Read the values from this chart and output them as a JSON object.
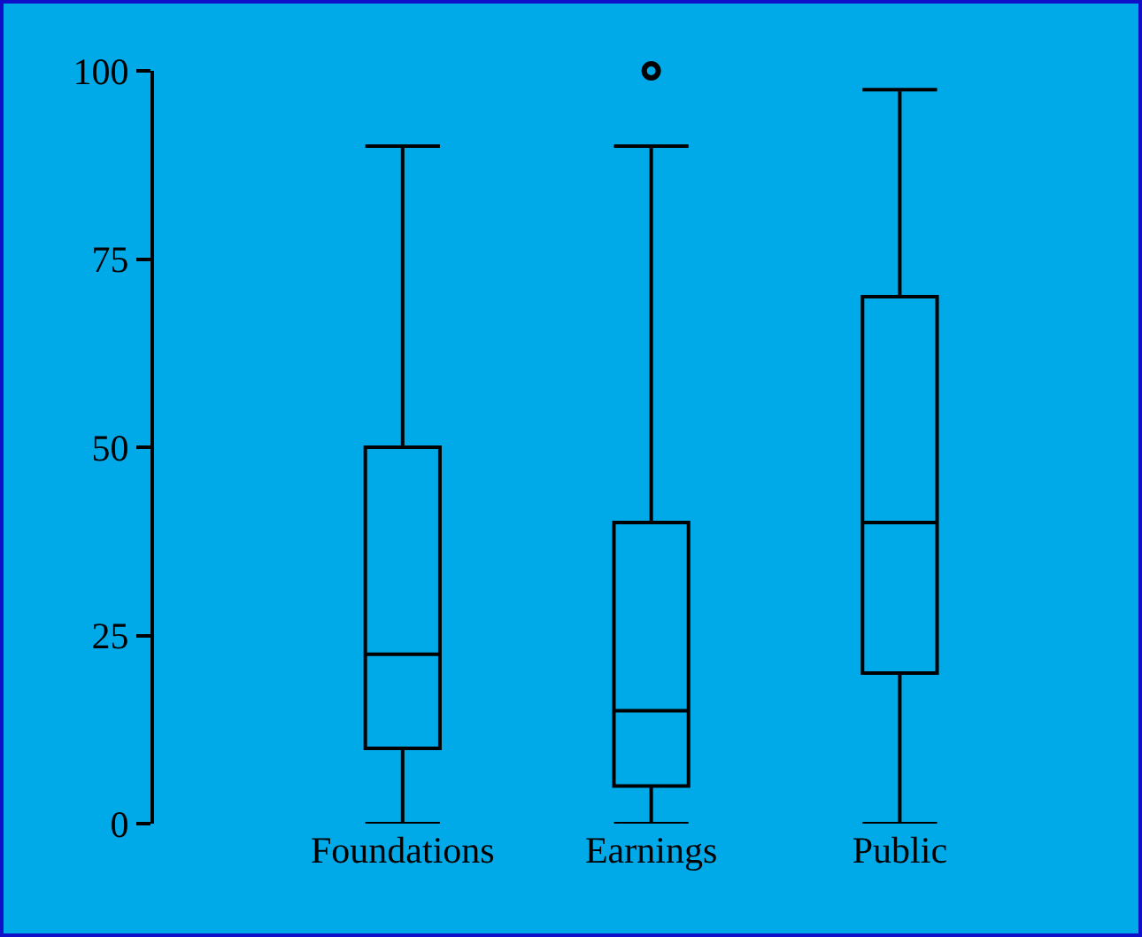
{
  "chart_data": {
    "type": "box",
    "categories": [
      "Foundations",
      "Earnings",
      "Public"
    ],
    "series": [
      {
        "color": "#000000",
        "boxes": [
          {
            "low": 0,
            "q1": 10,
            "median": 22.5,
            "q3": 50,
            "high": 90
          },
          {
            "low": 0,
            "q1": 5,
            "median": 15,
            "q3": 40,
            "high": 90,
            "outliers": [
              100
            ]
          },
          {
            "low": 0,
            "q1": 20,
            "median": 40,
            "q3": 70,
            "high": 97.5
          }
        ]
      }
    ],
    "ylim": [
      0,
      100
    ],
    "yticks": [
      0,
      25,
      50,
      75,
      100
    ],
    "grid": false
  }
}
